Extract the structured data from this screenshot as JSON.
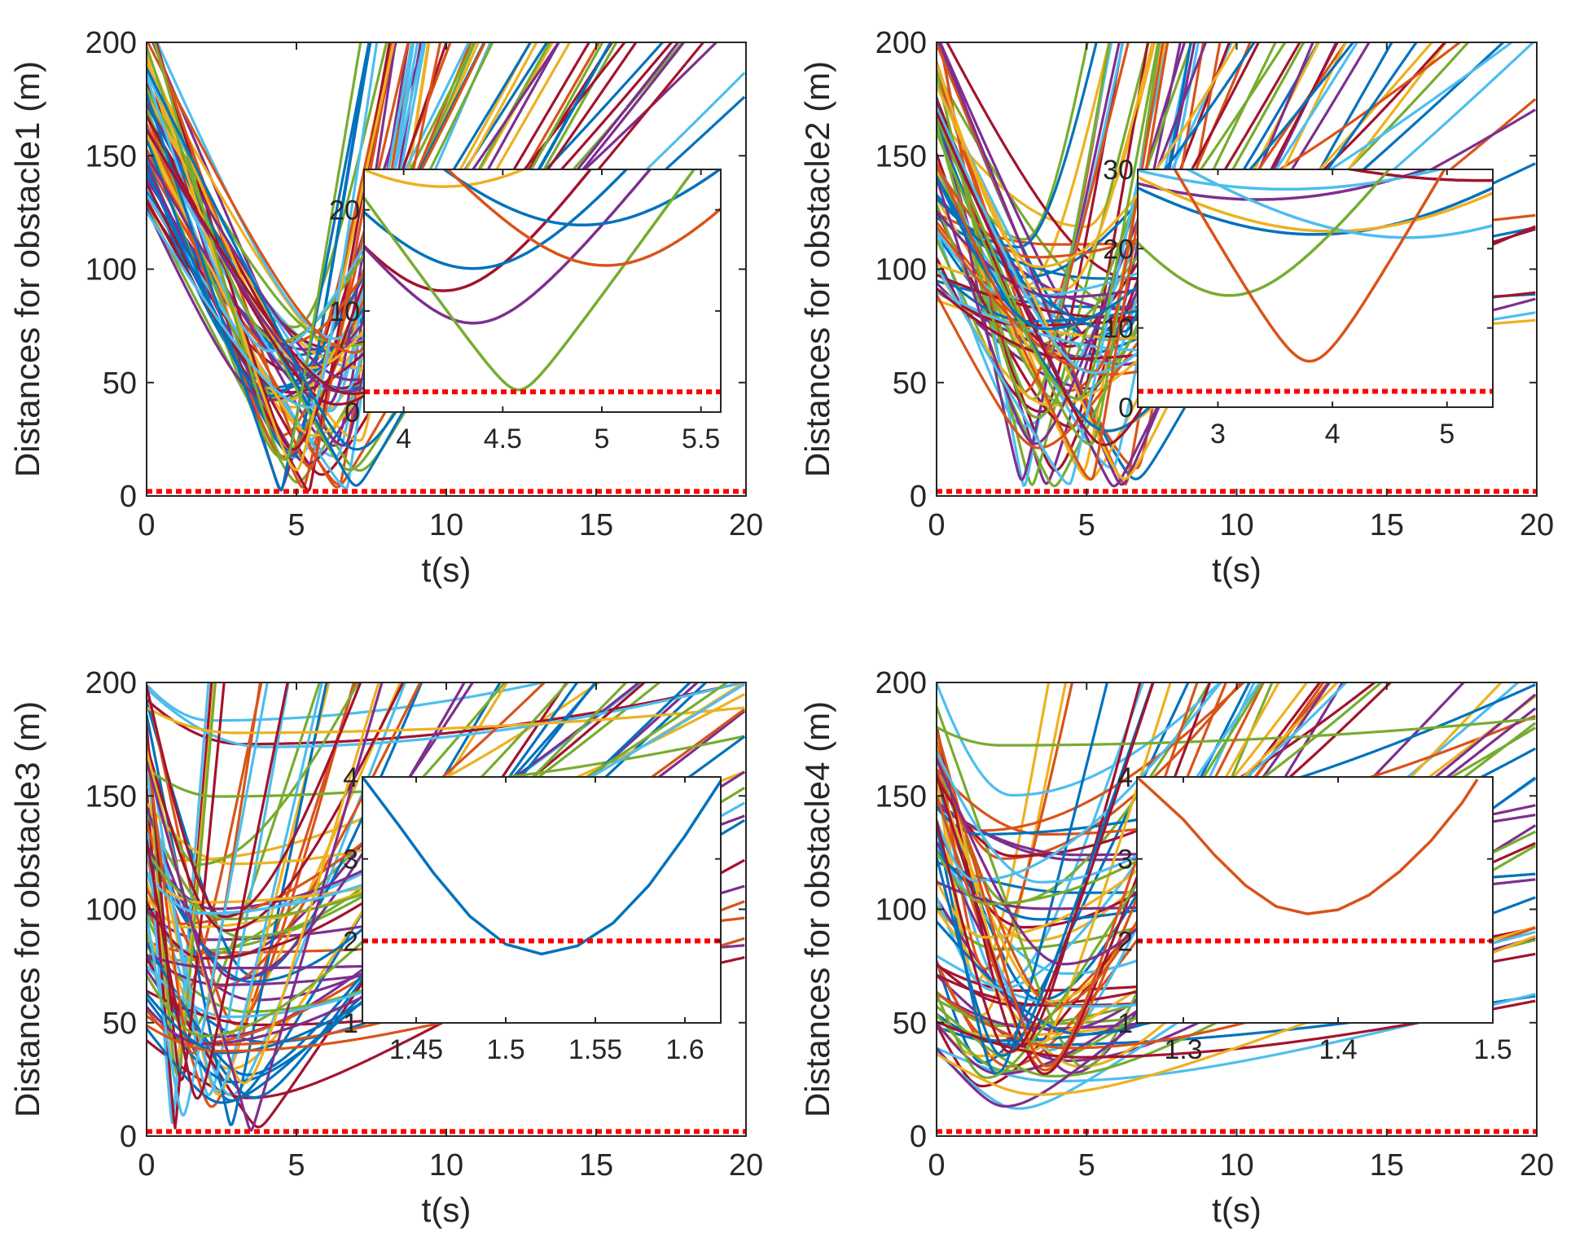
{
  "chart_data": [
    {
      "type": "line",
      "xlabel": "t(s)",
      "ylabel": "Distances for obstacle1 (m)",
      "xlim": [
        0,
        20
      ],
      "ylim": [
        0,
        200
      ],
      "xticks": [
        "0",
        "5",
        "10",
        "15",
        "20"
      ],
      "yticks": [
        "0",
        "50",
        "100",
        "150",
        "200"
      ],
      "grid": false,
      "safety_distance": 2,
      "trajectories": {
        "count": 64,
        "seed": 11,
        "start_range": [
          125,
          215
        ],
        "min_time_range": [
          4.0,
          7.4
        ],
        "min_dist_range": [
          2,
          75
        ],
        "late_fraction": 0.45
      },
      "inset": {
        "xlim": [
          3.8,
          5.6
        ],
        "ylim": [
          0,
          24
        ],
        "xticks": [
          "4",
          "4.5",
          "5",
          "5.5"
        ],
        "xtick_values": [
          4,
          4.5,
          5,
          5.5
        ],
        "yticks": [
          "0",
          "10",
          "20"
        ],
        "ytick_values": [
          0,
          10,
          20
        ],
        "curves": [
          {
            "color": "#EDB120",
            "t_min": 4.2,
            "d_min": 22.3,
            "slope": 22
          },
          {
            "color": "#A2142F",
            "t_min": 4.2,
            "d_min": 12.0,
            "slope": 28
          },
          {
            "color": "#7E2F8E",
            "t_min": 4.35,
            "d_min": 8.8,
            "slope": 25
          },
          {
            "color": "#0072BD",
            "t_min": 4.35,
            "d_min": 14.2,
            "slope": 25
          },
          {
            "color": "#0072BD",
            "t_min": 4.9,
            "d_min": 18.5,
            "slope": 22
          },
          {
            "color": "#77AC30",
            "t_min": 4.58,
            "d_min": 2.2,
            "slope": 27
          },
          {
            "color": "#D95319",
            "t_min": 5.02,
            "d_min": 14.5,
            "slope": 24
          }
        ]
      }
    },
    {
      "type": "line",
      "xlabel": "t(s)",
      "ylabel": "Distances for obstacle2 (m)",
      "xlim": [
        0,
        20
      ],
      "ylim": [
        0,
        200
      ],
      "xticks": [
        "0",
        "5",
        "10",
        "15",
        "20"
      ],
      "yticks": [
        "0",
        "50",
        "100",
        "150",
        "200"
      ],
      "grid": false,
      "safety_distance": 2,
      "trajectories": {
        "count": 72,
        "seed": 23,
        "start_range": [
          85,
          210
        ],
        "min_time_range": [
          2.6,
          6.8
        ],
        "min_dist_range": [
          4,
          130
        ],
        "late_fraction": 0.35
      },
      "inset": {
        "xlim": [
          2.3,
          5.4
        ],
        "ylim": [
          0,
          30
        ],
        "xticks": [
          "3",
          "4",
          "5"
        ],
        "xtick_values": [
          3,
          4,
          5
        ],
        "yticks": [
          "0",
          "10",
          "20",
          "30"
        ],
        "ytick_values": [
          0,
          10,
          20,
          30
        ],
        "curves": [
          {
            "color": "#7E2F8E",
            "t_min": 3.35,
            "d_min": 26.2,
            "slope": 10
          },
          {
            "color": "#0072BD",
            "t_min": 3.85,
            "d_min": 21.8,
            "slope": 11
          },
          {
            "color": "#EDB120",
            "t_min": 4.0,
            "d_min": 22.2,
            "slope": 11
          },
          {
            "color": "#4DBEEE",
            "t_min": 4.65,
            "d_min": 21.4,
            "slope": 11
          },
          {
            "color": "#4DBEEE",
            "t_min": 3.6,
            "d_min": 27.5,
            "slope": 9
          },
          {
            "color": "#A2142F",
            "t_min": 5.3,
            "d_min": 28.6,
            "slope": 8
          },
          {
            "color": "#77AC30",
            "t_min": 3.1,
            "d_min": 14.1,
            "slope": 19
          },
          {
            "color": "#D95319",
            "t_min": 3.8,
            "d_min": 5.8,
            "slope": 25
          }
        ]
      }
    },
    {
      "type": "line",
      "xlabel": "t(s)",
      "ylabel": "Distances for obstacle3 (m)",
      "xlim": [
        0,
        20
      ],
      "ylim": [
        0,
        200
      ],
      "xticks": [
        "0",
        "5",
        "10",
        "15",
        "20"
      ],
      "yticks": [
        "0",
        "50",
        "100",
        "150",
        "200"
      ],
      "grid": false,
      "safety_distance": 2,
      "trajectories": {
        "count": 70,
        "seed": 37,
        "start_range": [
          40,
          200
        ],
        "min_time_range": [
          0.8,
          4.0
        ],
        "min_dist_range": [
          2,
          190
        ],
        "late_fraction": 0
      },
      "inset": {
        "xlim": [
          1.42,
          1.62
        ],
        "ylim": [
          1,
          4
        ],
        "xticks": [
          "1.45",
          "1.5",
          "1.55",
          "1.6"
        ],
        "xtick_values": [
          1.45,
          1.5,
          1.55,
          1.6
        ],
        "yticks": [
          "1",
          "2",
          "3",
          "4"
        ],
        "ytick_values": [
          1,
          2,
          3,
          4
        ],
        "curves": [
          {
            "color": "#0072BD",
            "points": [
              [
                1.42,
                4.0
              ],
              [
                1.44,
                3.42
              ],
              [
                1.46,
                2.82
              ],
              [
                1.48,
                2.3
              ],
              [
                1.5,
                1.96
              ],
              [
                1.52,
                1.84
              ],
              [
                1.54,
                1.94
              ],
              [
                1.56,
                2.22
              ],
              [
                1.58,
                2.68
              ],
              [
                1.6,
                3.28
              ],
              [
                1.62,
                3.95
              ]
            ]
          }
        ]
      }
    },
    {
      "type": "line",
      "xlabel": "t(s)",
      "ylabel": "Distances for obstacle4 (m)",
      "xlim": [
        0,
        20
      ],
      "ylim": [
        0,
        200
      ],
      "xticks": [
        "0",
        "5",
        "10",
        "15",
        "20"
      ],
      "yticks": [
        "0",
        "50",
        "100",
        "150",
        "200"
      ],
      "grid": false,
      "safety_distance": 2,
      "trajectories": {
        "count": 70,
        "seed": 53,
        "start_range": [
          35,
          200
        ],
        "min_time_range": [
          1.2,
          5.0
        ],
        "min_dist_range": [
          25,
          190
        ],
        "late_fraction": 0
      },
      "inset": {
        "xlim": [
          1.27,
          1.5
        ],
        "ylim": [
          1,
          4
        ],
        "xticks": [
          "1.3",
          "1.4",
          "1.5"
        ],
        "xtick_values": [
          1.3,
          1.4,
          1.5
        ],
        "yticks": [
          "1",
          "2",
          "3",
          "4"
        ],
        "ytick_values": [
          1,
          2,
          3,
          4
        ],
        "curves": [
          {
            "color": "#D95319",
            "points": [
              [
                1.27,
                4.0
              ],
              [
                1.3,
                3.48
              ],
              [
                1.32,
                3.05
              ],
              [
                1.34,
                2.68
              ],
              [
                1.36,
                2.42
              ],
              [
                1.38,
                2.33
              ],
              [
                1.4,
                2.38
              ],
              [
                1.42,
                2.56
              ],
              [
                1.44,
                2.85
              ],
              [
                1.46,
                3.22
              ],
              [
                1.48,
                3.68
              ],
              [
                1.49,
                3.97
              ]
            ]
          }
        ]
      }
    }
  ],
  "colors": {
    "palette": [
      "#0072BD",
      "#D95319",
      "#EDB120",
      "#7E2F8E",
      "#77AC30",
      "#4DBEEE",
      "#A2142F"
    ],
    "safety_line": "#FF0000",
    "axes": "#262626"
  }
}
